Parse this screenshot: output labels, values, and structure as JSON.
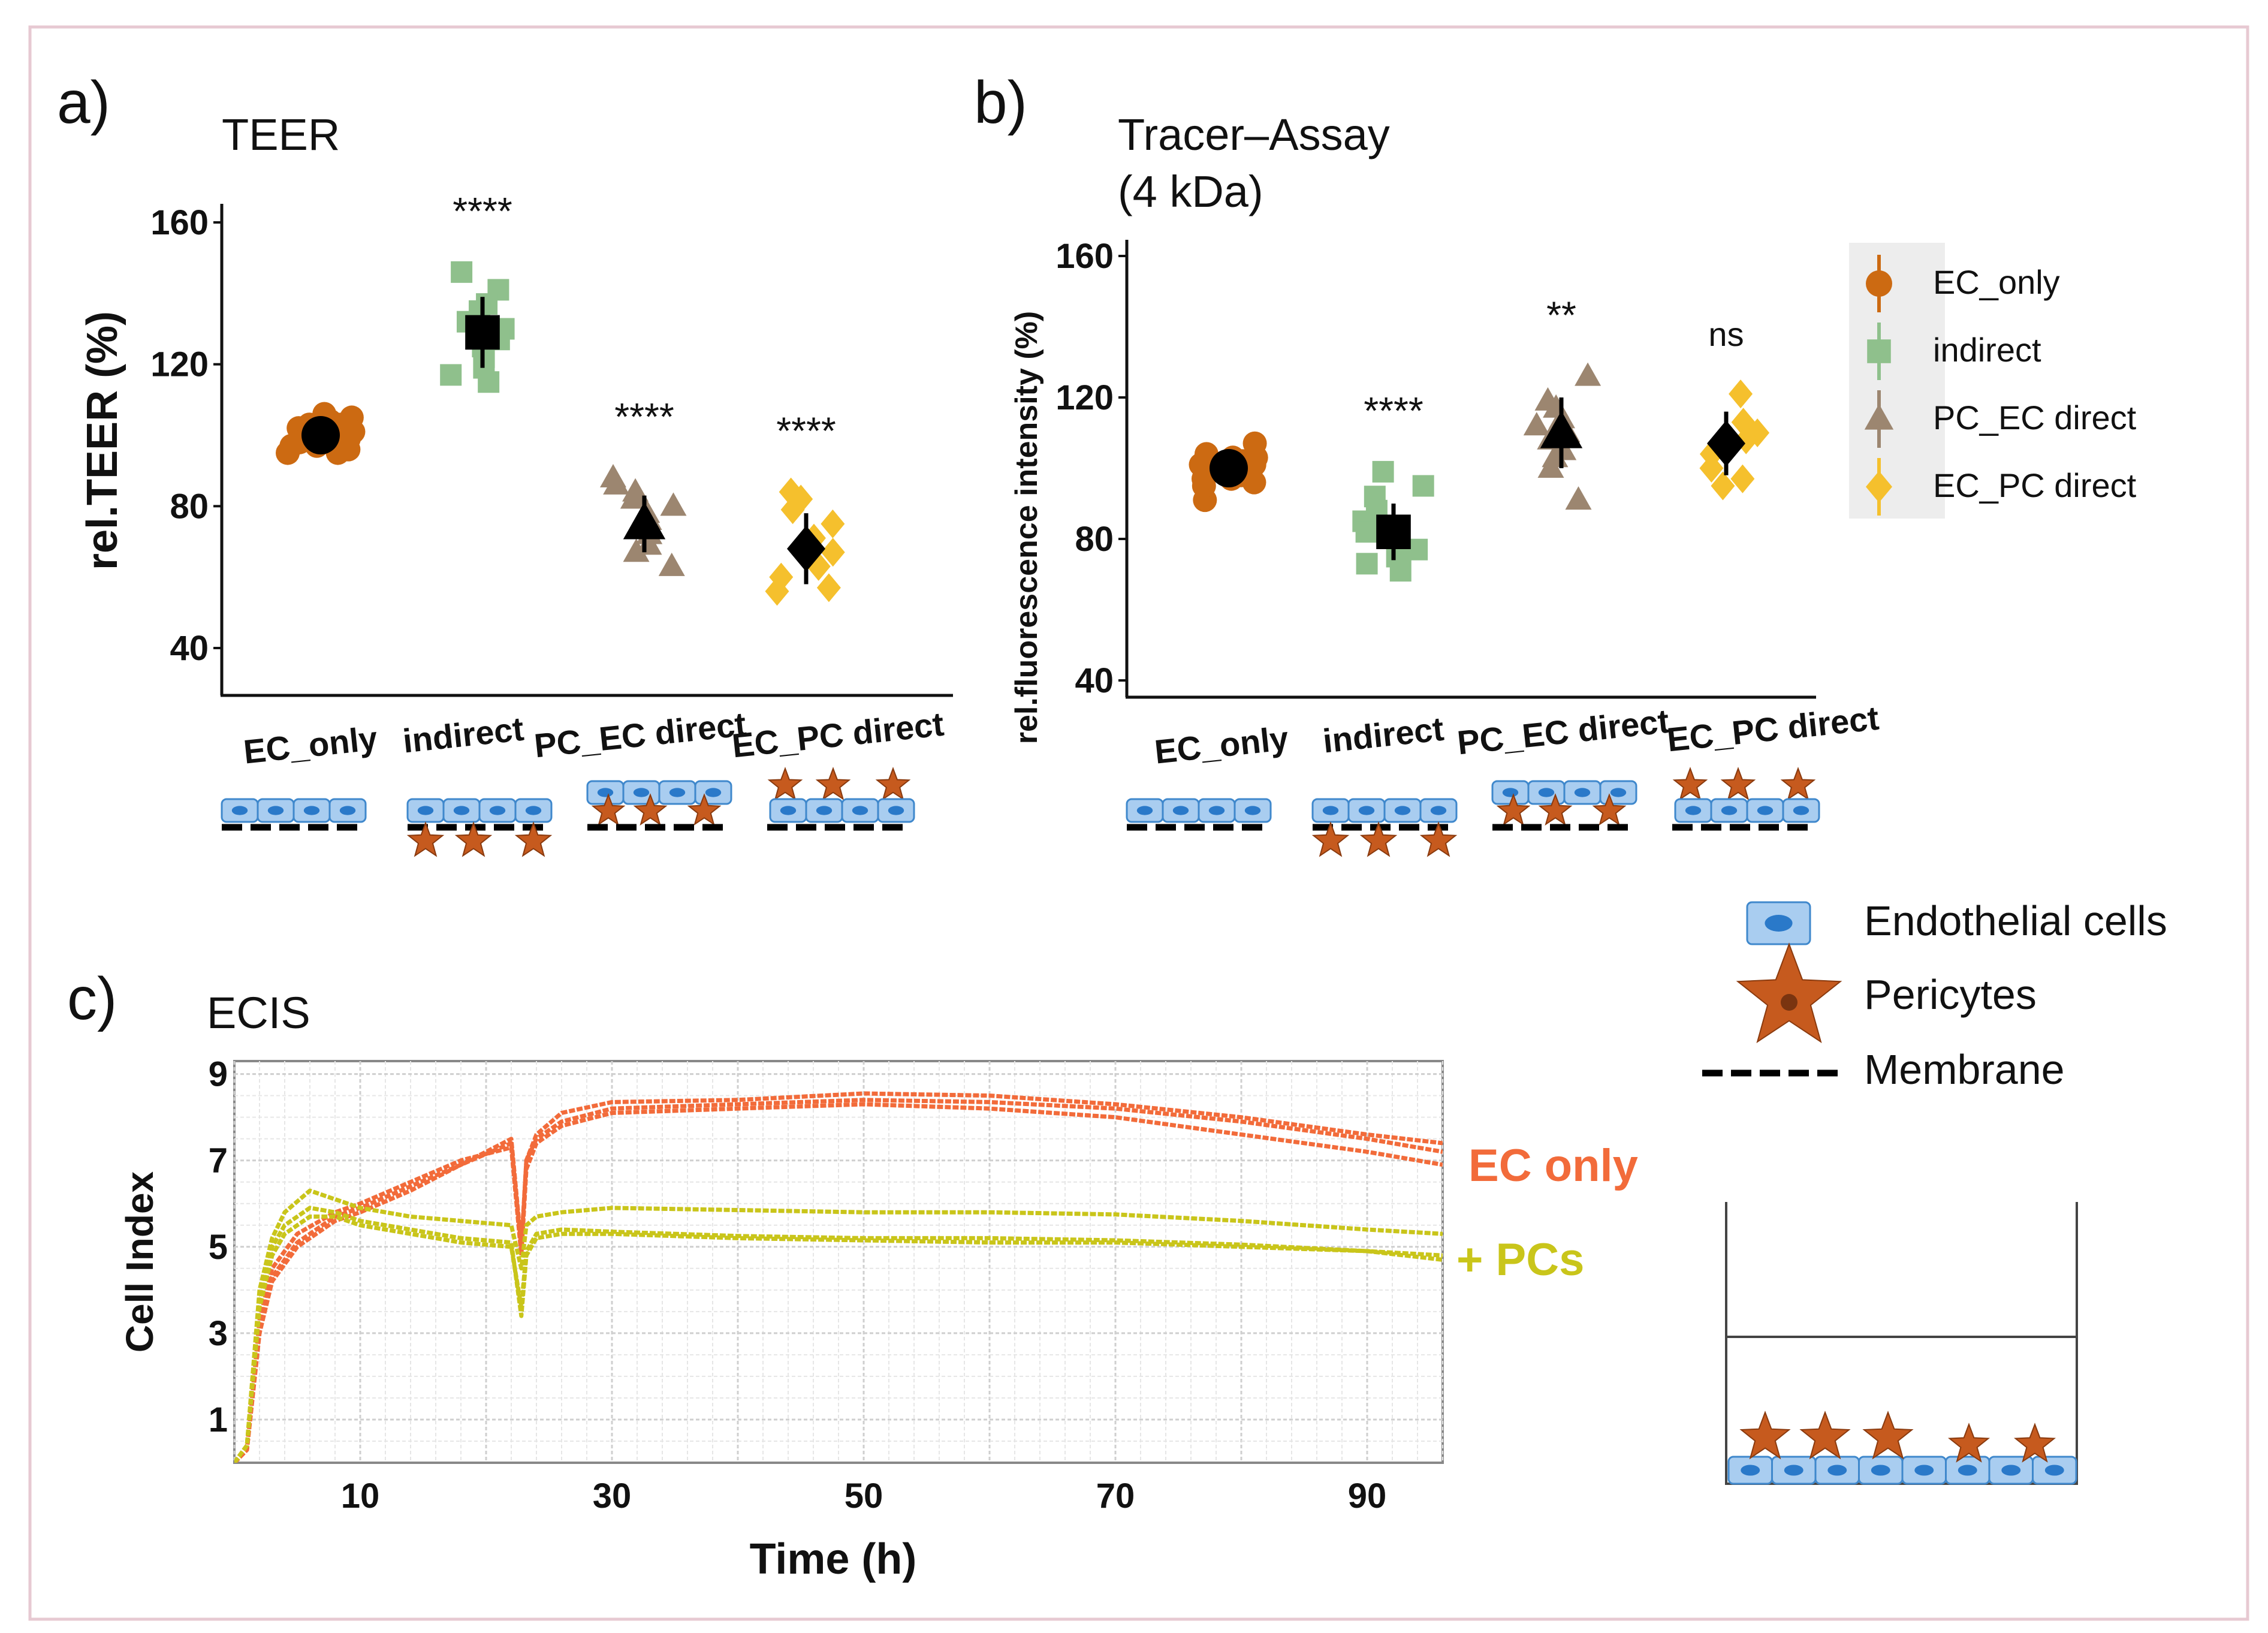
{
  "panels": {
    "a": {
      "letter": "a)",
      "title": "TEER"
    },
    "b": {
      "letter": "b)",
      "title_line1": "Tracer–Assay",
      "title_line2": "(4 kDa)"
    },
    "c": {
      "letter": "c)",
      "title": "ECIS"
    }
  },
  "colors": {
    "EC_only": "#cc6a12",
    "indirect": "#8fc08c",
    "PC_EC direct": "#9c8670",
    "EC_PC direct": "#f5c02d",
    "ec_only_line": "#f26b3a",
    "pcs_line": "#c9c51a",
    "endothelial": "#a9cdf0",
    "endothelial_edge": "#3f88cc",
    "nucleus": "#2a79c9",
    "pericyte": "#c65a1e",
    "pericyte_edge": "#8a3a0e"
  },
  "legend_groups": [
    {
      "name": "EC_only",
      "label": "EC_only",
      "shape": "circle"
    },
    {
      "name": "indirect",
      "label": "indirect",
      "shape": "square"
    },
    {
      "name": "PC_EC direct",
      "label": "PC_EC direct",
      "shape": "triangle"
    },
    {
      "name": "EC_PC direct",
      "label": "EC_PC direct",
      "shape": "diamond"
    }
  ],
  "cell_legend": {
    "endothelial": "Endothelial cells",
    "pericytes": "Pericytes",
    "membrane": "Membrane"
  },
  "chart_data": [
    {
      "id": "teer",
      "type": "scatter",
      "title": "TEER",
      "xlabel": "",
      "ylabel": "rel.TEER (%)",
      "ylim": [
        30,
        165
      ],
      "yticks": [
        40,
        80,
        120,
        160
      ],
      "categories": [
        "EC_only",
        "indirect",
        "PC_EC direct",
        "EC_PC direct"
      ],
      "groups": [
        {
          "name": "EC_only",
          "shape": "circle",
          "mean": 100,
          "sd": 3,
          "significance": "",
          "points": [
            95,
            96,
            97,
            98,
            99,
            100,
            101,
            102,
            103,
            104,
            105,
            96,
            98,
            101,
            103,
            97,
            99,
            102,
            104,
            100,
            95,
            106,
            98,
            101
          ]
        },
        {
          "name": "indirect",
          "shape": "square",
          "mean": 129,
          "sd": 10,
          "significance": "****",
          "points": [
            146,
            141,
            137,
            135,
            132,
            130,
            127,
            125,
            122,
            119,
            117,
            115
          ]
        },
        {
          "name": "PC_EC direct",
          "shape": "triangle",
          "mean": 75,
          "sd": 8,
          "significance": "****",
          "points": [
            88,
            86,
            84,
            82,
            80,
            78,
            76,
            74,
            72,
            69,
            67,
            63
          ]
        },
        {
          "name": "EC_PC direct",
          "shape": "diamond",
          "mean": 68,
          "sd": 10,
          "significance": "****",
          "points": [
            84,
            82,
            79,
            75,
            71,
            67,
            63,
            60,
            57,
            56
          ]
        }
      ]
    },
    {
      "id": "tracer",
      "type": "scatter",
      "title": "Tracer–Assay (4 kDa)",
      "xlabel": "",
      "ylabel": "rel.fluorescence intensity (%)",
      "ylim": [
        37,
        164
      ],
      "yticks": [
        40,
        80,
        120,
        160
      ],
      "categories": [
        "EC_only",
        "indirect",
        "PC_EC direct",
        "EC_PC direct"
      ],
      "groups": [
        {
          "name": "EC_only",
          "shape": "circle",
          "mean": 100,
          "sd": 3,
          "significance": "",
          "points": [
            91,
            95,
            96,
            97,
            98,
            99,
            100,
            101,
            102,
            103,
            104,
            107,
            97,
            99,
            101,
            103,
            98,
            100,
            102
          ]
        },
        {
          "name": "indirect",
          "shape": "square",
          "mean": 82,
          "sd": 8,
          "significance": "****",
          "points": [
            99,
            95,
            92,
            88,
            85,
            82,
            79,
            77,
            75,
            73,
            71
          ]
        },
        {
          "name": "PC_EC direct",
          "shape": "triangle",
          "mean": 110,
          "sd": 10,
          "significance": "**",
          "points": [
            126,
            119,
            117,
            114,
            112,
            110,
            108,
            105,
            103,
            100,
            91
          ]
        },
        {
          "name": "EC_PC direct",
          "shape": "diamond",
          "mean": 107,
          "sd": 9,
          "significance": "ns",
          "points": [
            121,
            113,
            110,
            108,
            104,
            100,
            97,
            95
          ]
        }
      ]
    },
    {
      "id": "ecis",
      "type": "line",
      "title": "ECIS",
      "xlabel": "Time (h)",
      "ylabel": "Cell Index",
      "xlim": [
        0,
        96
      ],
      "ylim": [
        0,
        9.3
      ],
      "xticks": [
        10,
        30,
        50,
        70,
        90
      ],
      "yticks": [
        1,
        3,
        5,
        7,
        9
      ],
      "grid": true,
      "series": [
        {
          "name": "EC only",
          "color": "#f26b3a",
          "x": [
            0,
            1,
            2,
            3,
            5,
            8,
            10,
            14,
            18,
            22,
            22.8,
            23.2,
            24,
            26,
            30,
            40,
            50,
            60,
            70,
            80,
            90,
            96
          ],
          "y": [
            0,
            0.3,
            3.0,
            4.2,
            5.0,
            5.6,
            5.8,
            6.3,
            6.9,
            7.5,
            5.0,
            7.0,
            7.5,
            7.9,
            8.2,
            8.3,
            8.4,
            8.35,
            8.2,
            7.9,
            7.5,
            7.2
          ]
        },
        {
          "name": "EC only",
          "color": "#f26b3a",
          "x": [
            0,
            1,
            2,
            3,
            5,
            8,
            10,
            14,
            18,
            22,
            22.8,
            23.2,
            24,
            26,
            30,
            40,
            50,
            60,
            70,
            80,
            90,
            96
          ],
          "y": [
            0,
            0.3,
            3.3,
            4.5,
            5.3,
            5.8,
            6.0,
            6.5,
            7.0,
            7.3,
            4.8,
            6.8,
            7.4,
            7.8,
            8.1,
            8.2,
            8.3,
            8.2,
            8.0,
            7.6,
            7.2,
            6.9
          ]
        },
        {
          "name": "EC only",
          "color": "#f26b3a",
          "x": [
            0,
            1,
            2,
            3,
            5,
            8,
            10,
            14,
            18,
            22,
            22.8,
            23.2,
            24,
            26,
            30,
            40,
            50,
            60,
            70,
            80,
            90,
            96
          ],
          "y": [
            0,
            0.3,
            3.1,
            4.3,
            5.1,
            5.7,
            5.9,
            6.4,
            6.9,
            7.4,
            4.9,
            7.0,
            7.6,
            8.1,
            8.35,
            8.4,
            8.55,
            8.5,
            8.3,
            8.0,
            7.6,
            7.4
          ]
        },
        {
          "name": "+ PCs",
          "color": "#c9c51a",
          "x": [
            0,
            1,
            2,
            3,
            4,
            6,
            8,
            10,
            14,
            18,
            22,
            22.8,
            23.2,
            24,
            26,
            30,
            40,
            50,
            60,
            70,
            80,
            90,
            96
          ],
          "y": [
            0,
            0.4,
            4.0,
            5.2,
            5.8,
            6.3,
            6.1,
            5.9,
            5.7,
            5.6,
            5.5,
            4.5,
            5.5,
            5.7,
            5.8,
            5.9,
            5.85,
            5.8,
            5.8,
            5.75,
            5.6,
            5.4,
            5.3
          ]
        },
        {
          "name": "+ PCs",
          "color": "#c9c51a",
          "x": [
            0,
            1,
            2,
            3,
            4,
            6,
            8,
            10,
            14,
            18,
            22,
            22.8,
            23.2,
            24,
            26,
            30,
            40,
            50,
            60,
            70,
            80,
            90,
            96
          ],
          "y": [
            0,
            0.4,
            3.8,
            5.0,
            5.5,
            5.9,
            5.8,
            5.6,
            5.4,
            5.2,
            5.1,
            3.4,
            4.8,
            5.2,
            5.3,
            5.3,
            5.2,
            5.15,
            5.1,
            5.1,
            5.0,
            4.9,
            4.8
          ]
        },
        {
          "name": "+ PCs",
          "color": "#c9c51a",
          "x": [
            0,
            1,
            2,
            3,
            4,
            6,
            8,
            10,
            14,
            18,
            22,
            22.8,
            23.2,
            24,
            26,
            30,
            40,
            50,
            60,
            70,
            80,
            90,
            96
          ],
          "y": [
            0,
            0.4,
            3.6,
            4.8,
            5.3,
            5.7,
            5.7,
            5.5,
            5.3,
            5.1,
            5.0,
            3.6,
            4.9,
            5.3,
            5.4,
            5.35,
            5.25,
            5.2,
            5.2,
            5.15,
            5.05,
            4.9,
            4.7
          ]
        }
      ],
      "annotations": [
        "EC only",
        "+ PCs"
      ]
    }
  ]
}
